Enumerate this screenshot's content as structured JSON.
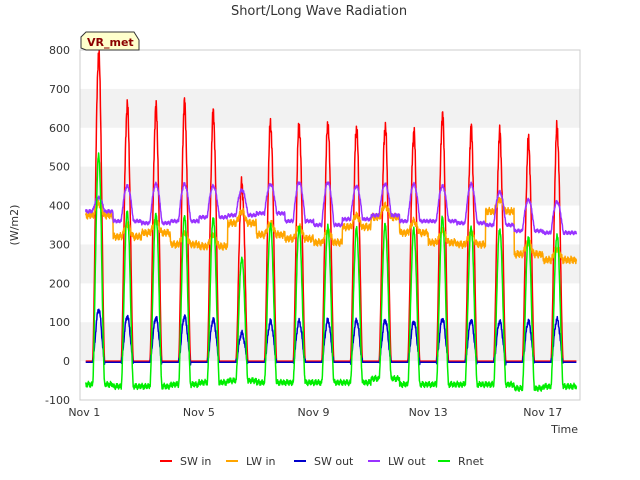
{
  "chart_data": {
    "type": "line",
    "title": "Short/Long Wave Radiation",
    "xlabel": "Time",
    "ylabel": "(W/m2)",
    "site_tag": "VR_met",
    "xlim": [
      0.85,
      18.3
    ],
    "ylim": [
      -100,
      800
    ],
    "yticks": [
      -100,
      0,
      100,
      200,
      300,
      400,
      500,
      600,
      700,
      800
    ],
    "xticks": [
      {
        "value": 1,
        "label": "Nov 1"
      },
      {
        "value": 5,
        "label": "Nov 5"
      },
      {
        "value": 9,
        "label": "Nov 9"
      },
      {
        "value": 13,
        "label": "Nov 13"
      },
      {
        "value": 17,
        "label": "Nov 17"
      }
    ],
    "grid": "horizontal bands",
    "legend_position": "bottom",
    "x_unit": "day of November (fractional)",
    "series": [
      {
        "name": "SW in",
        "color": "#ff0000",
        "daily_peaks": [
          790,
          655,
          650,
          660,
          635,
          455,
          610,
          605,
          610,
          600,
          605,
          590,
          630,
          595,
          585,
          565,
          598
        ]
      },
      {
        "name": "LW in",
        "color": "#ffa500",
        "daily_levels": [
          375,
          320,
          330,
          300,
          295,
          355,
          325,
          315,
          305,
          345,
          370,
          330,
          305,
          300,
          385,
          275,
          260
        ]
      },
      {
        "name": "SW out",
        "color": "#0000cc",
        "daily_peaks": [
          135,
          118,
          115,
          118,
          110,
          75,
          105,
          105,
          108,
          108,
          108,
          105,
          112,
          108,
          105,
          105,
          110
        ]
      },
      {
        "name": "LW out",
        "color": "#9933ff",
        "daily_levels": [
          420,
          450,
          455,
          455,
          450,
          440,
          455,
          460,
          460,
          450,
          455,
          455,
          450,
          455,
          435,
          415,
          410
        ],
        "night_levels": [
          385,
          360,
          355,
          360,
          370,
          375,
          380,
          360,
          350,
          365,
          375,
          360,
          360,
          355,
          350,
          335,
          330
        ]
      },
      {
        "name": "Rnet",
        "color": "#00ee00",
        "daily_peaks": [
          530,
          385,
          380,
          375,
          370,
          265,
          350,
          345,
          345,
          340,
          350,
          340,
          370,
          345,
          340,
          320,
          325
        ],
        "night_levels": [
          -60,
          -65,
          -65,
          -60,
          -55,
          -50,
          -55,
          -55,
          -55,
          -55,
          -45,
          -60,
          -60,
          -60,
          -60,
          -70,
          -65
        ]
      }
    ]
  }
}
